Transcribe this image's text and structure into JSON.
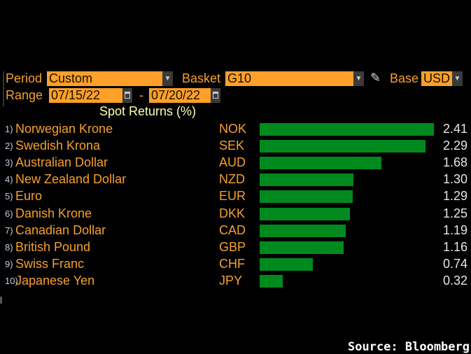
{
  "controls": {
    "period_label": "Period",
    "period_value": "Custom",
    "basket_label": "Basket",
    "basket_value": "G10",
    "base_label": "Base",
    "base_value": "USD",
    "range_label": "Range",
    "range_start": "07/15/22",
    "range_sep": "-",
    "range_end": "07/20/22"
  },
  "chart_data": {
    "type": "bar",
    "orientation": "horizontal",
    "title": "Spot Returns (%)",
    "categories": [
      "Norwegian Krone",
      "Swedish Krona",
      "Australian Dollar",
      "New Zealand Dollar",
      "Euro",
      "Danish Krone",
      "Canadian Dollar",
      "British Pound",
      "Swiss Franc",
      "Japanese Yen"
    ],
    "codes": [
      "NOK",
      "SEK",
      "AUD",
      "NZD",
      "EUR",
      "DKK",
      "CAD",
      "GBP",
      "CHF",
      "JPY"
    ],
    "values": [
      2.41,
      2.29,
      1.68,
      1.3,
      1.29,
      1.25,
      1.19,
      1.16,
      0.74,
      0.32
    ],
    "value_labels": [
      "2.41",
      "2.29",
      "1.68",
      "1.30",
      "1.29",
      "1.25",
      "1.19",
      "1.16",
      "0.74",
      "0.32"
    ],
    "numbers": [
      "1)",
      "2)",
      "3)",
      "4)",
      "5)",
      "6)",
      "7)",
      "8)",
      "9)",
      "10)"
    ],
    "bar_color": "#008a1e"
  },
  "source": "Source: Bloomberg"
}
